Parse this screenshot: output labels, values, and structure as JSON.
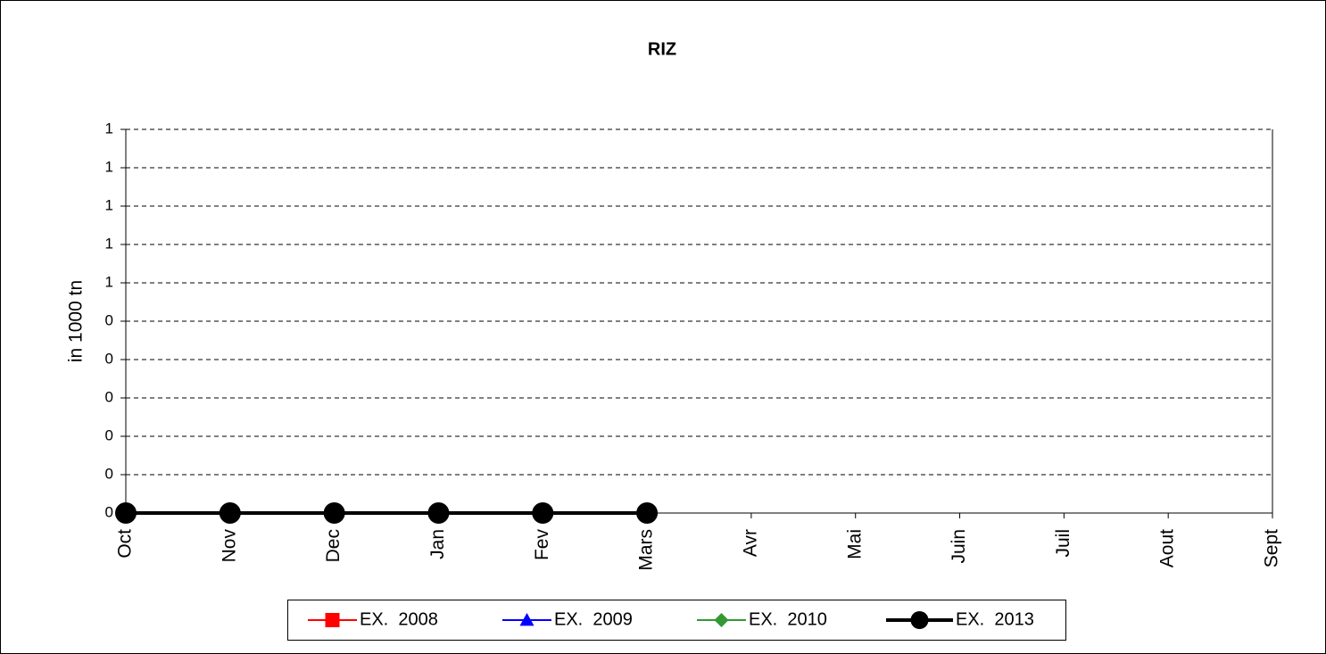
{
  "chart_data": {
    "type": "line",
    "title": "RIZ",
    "y_label": "in 1000 tn",
    "categories": [
      "Oct",
      "Nov",
      "Dec",
      "Jan",
      "Fev",
      "Mars",
      "Avr",
      "Mai",
      "Juin",
      "Juil",
      "Aout",
      "Sept"
    ],
    "ylim": [
      0,
      1
    ],
    "yticks": [
      0,
      {
        "value": 0.1,
        "label": "0"
      },
      {
        "value": 0.2,
        "label": "0"
      },
      {
        "value": 0.3,
        "label": "0"
      },
      {
        "value": 0.4,
        "label": "0"
      },
      {
        "value": 0.5,
        "label": "0"
      },
      {
        "value": 0.6,
        "label": "1"
      },
      {
        "value": 0.7,
        "label": "1"
      },
      {
        "value": 0.8,
        "label": "1"
      },
      {
        "value": 0.9,
        "label": "1"
      },
      1
    ],
    "grid": true,
    "legend": "bottom",
    "series": [
      {
        "name": "EX.  2008",
        "color": "#ff0000",
        "marker": "square",
        "line_width": 2,
        "values": [
          null,
          null,
          null,
          null,
          null,
          null,
          null,
          null,
          null,
          null,
          null,
          null
        ]
      },
      {
        "name": "EX.  2009",
        "color": "#0000ff",
        "marker": "triangle",
        "line_width": 2,
        "values": [
          null,
          null,
          null,
          null,
          null,
          null,
          null,
          null,
          null,
          null,
          null,
          null
        ]
      },
      {
        "name": "EX.  2010",
        "color": "#339933",
        "marker": "diamond",
        "line_width": 2,
        "values": [
          null,
          null,
          null,
          null,
          null,
          null,
          null,
          null,
          null,
          null,
          null,
          null
        ]
      },
      {
        "name": "EX.  2013",
        "color": "#000000",
        "marker": "circle",
        "line_width": 4,
        "values": [
          0,
          0,
          0,
          0,
          0,
          0,
          null,
          null,
          null,
          null,
          null,
          null
        ]
      }
    ]
  }
}
